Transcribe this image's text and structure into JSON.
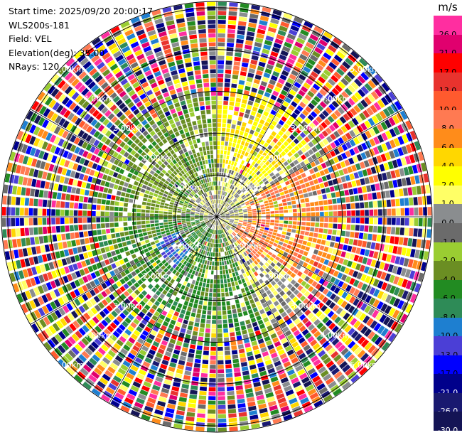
{
  "info": {
    "start_time": "Start time: 2025/09/20 20:00:17",
    "station": "WLS200s-181",
    "field": "Field: VEL",
    "elevation": "Elevation(deg): 35.00",
    "nrays": "NRays: 120"
  },
  "colorbar": {
    "unit": "m/s",
    "levels": [
      {
        "label": "26.0",
        "color": "#ff2ea0"
      },
      {
        "label": "21.0",
        "color": "#e0006e"
      },
      {
        "label": "17.0",
        "color": "#ff0000"
      },
      {
        "label": "13.0",
        "color": "#e8332e"
      },
      {
        "label": "10.0",
        "color": "#ff5a2e"
      },
      {
        "label": "8.0",
        "color": "#ff7a52"
      },
      {
        "label": "6.0",
        "color": "#ff8c1a"
      },
      {
        "label": "4.0",
        "color": "#ffd700"
      },
      {
        "label": "2.0",
        "color": "#ffff00"
      },
      {
        "label": "1.0",
        "color": "#ffff66"
      },
      {
        "label": "0.0",
        "color": "#8a8d8f"
      },
      {
        "label": "-1.0",
        "color": "#6b6b6b"
      },
      {
        "label": "-2.0",
        "color": "#9acd32"
      },
      {
        "label": "-4.0",
        "color": "#6b8e23"
      },
      {
        "label": "-6.0",
        "color": "#228b22"
      },
      {
        "label": "-8.0",
        "color": "#2e8b57"
      },
      {
        "label": "-10.0",
        "color": "#1e7fd0"
      },
      {
        "label": "-13.0",
        "color": "#4b3fd6"
      },
      {
        "label": "-17.0",
        "color": "#0000ff"
      },
      {
        "label": "-21.0",
        "color": "#00008b"
      },
      {
        "label": "-26.0",
        "color": "#191970"
      },
      {
        "label": "-30.0",
        "color": "#141455"
      }
    ]
  },
  "chart_data": {
    "type": "heatmap",
    "subtype": "radar-ppi",
    "field": "VEL",
    "unit": "m/s",
    "range_rings_km": [
      1.0,
      2.0,
      3.0,
      4.0,
      5.0
    ],
    "ring_labels": [
      "1.00km",
      "2.00km",
      "3.00km",
      "4.00km",
      "5.00km"
    ],
    "max_range_km": 5.15,
    "n_rays": 120,
    "spoke_step_deg": 30,
    "grid": true,
    "description_regions": [
      {
        "name": "near-field",
        "range_km": [
          0,
          0.8
        ],
        "dominant": "yellow/gray (~0 to 2 m/s)"
      },
      {
        "name": "south-west sector",
        "range_km": [
          0.4,
          2.6
        ],
        "dominant": "green (~-2 to -6 m/s)"
      },
      {
        "name": "east sector",
        "range_km": [
          0.6,
          2.2
        ],
        "dominant": "orange/red (~6 to 10 m/s)"
      },
      {
        "name": "far-field",
        "range_km": [
          2.8,
          5.1
        ],
        "dominant": "noisy, all colors"
      }
    ]
  }
}
